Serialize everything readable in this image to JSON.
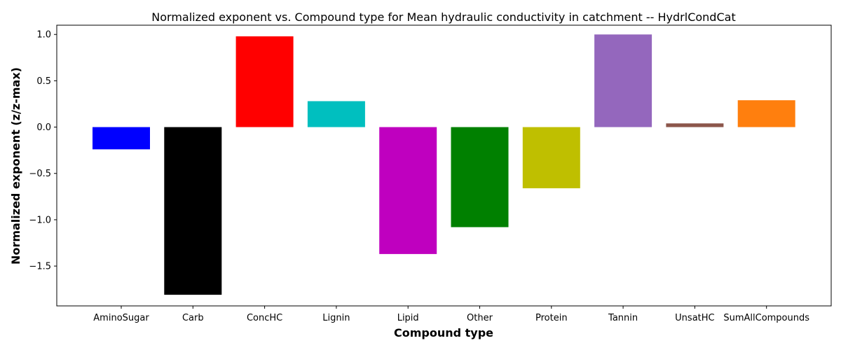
{
  "chart_data": {
    "type": "bar",
    "title": "Normalized exponent vs. Compound type for Mean hydraulic conductivity in catchment -- HydrlCondCat",
    "xlabel": "Compound type",
    "ylabel": "Normalized exponent (z/z-max)",
    "categories": [
      "AminoSugar",
      "Carb",
      "ConcHC",
      "Lignin",
      "Lipid",
      "Other",
      "Protein",
      "Tannin",
      "UnsatHC",
      "SumAllCompounds"
    ],
    "values": [
      -0.24,
      -1.81,
      0.98,
      0.28,
      -1.37,
      -1.08,
      -0.66,
      1.0,
      0.04,
      0.29
    ],
    "colors": [
      "#0000ff",
      "#000000",
      "#ff0000",
      "#00bfbf",
      "#bf00bf",
      "#008000",
      "#bfbf00",
      "#9467bd",
      "#8c564b",
      "#ff7f0e"
    ],
    "ylim": [
      -1.93,
      1.1
    ],
    "yticks": [
      -1.5,
      -1.0,
      -0.5,
      0.0,
      0.5,
      1.0
    ],
    "ytick_labels": [
      "−1.5",
      "−1.0",
      "−0.5",
      "0.0",
      "0.5",
      "1.0"
    ],
    "grid": false,
    "legend": "none"
  }
}
